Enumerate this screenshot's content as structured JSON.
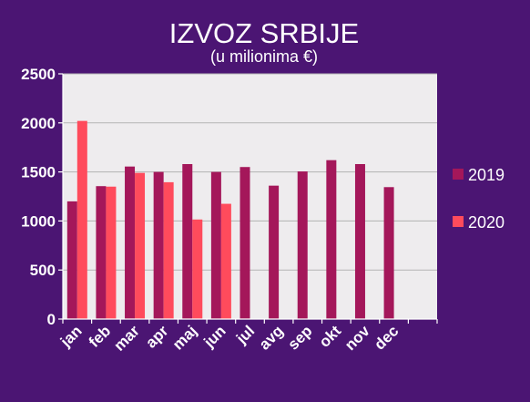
{
  "chart_data": {
    "type": "bar",
    "title": "IZVOZ SRBIJE",
    "subtitle": "(u milionima €)",
    "categories": [
      "jan",
      "feb",
      "mar",
      "apr",
      "maj",
      "jun",
      "jul",
      "avg",
      "sep",
      "okt",
      "nov",
      "dec"
    ],
    "series": [
      {
        "name": "2019",
        "color": "#a4175a",
        "values": [
          1200,
          1355,
          1555,
          1500,
          1580,
          1500,
          1550,
          1360,
          1505,
          1620,
          1580,
          1345
        ]
      },
      {
        "name": "2020",
        "color": "#ff4b5c",
        "values": [
          2020,
          1350,
          1490,
          1395,
          1015,
          1175,
          null,
          null,
          null,
          null,
          null,
          null
        ]
      }
    ],
    "ylim": [
      0,
      2500
    ],
    "yticks": [
      0,
      500,
      1000,
      1500,
      2000,
      2500
    ],
    "grid": true,
    "legend_position": "right",
    "colors": {
      "background": "#4b1573",
      "plot_area": "#eeecee",
      "gridline": "#b3b3b3",
      "axis": "#ffffff",
      "text": "#ffffff"
    }
  }
}
